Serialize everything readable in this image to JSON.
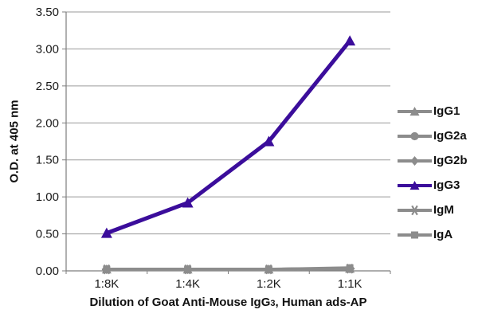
{
  "figure": {
    "xlabel_parts": {
      "prefix": "Dilution of Goat Anti-Mouse IgG",
      "sub": "3",
      "suffix": ", Human ads-AP"
    }
  },
  "chart_data": {
    "type": "line",
    "title": "",
    "xlabel": "Dilution of Goat Anti-Mouse IgG3, Human ads-AP",
    "ylabel": "O.D. at 405 nm",
    "categories": [
      "1:8K",
      "1:4K",
      "1:2K",
      "1:1K"
    ],
    "ylim": [
      0,
      3.5
    ],
    "yticks": [
      "0.00",
      "0.50",
      "1.00",
      "1.50",
      "2.00",
      "2.50",
      "3.00",
      "3.50"
    ],
    "grid": true,
    "legend_position": "right",
    "colors": {
      "accent_purple": "#3B0D9B",
      "series_gray": "#8C8C8C",
      "gridline": "#9A9A9A",
      "axis": "#7D7D7D",
      "text": "#1a1a1a"
    },
    "series": [
      {
        "name": "IgG1",
        "color": "#8C8C8C",
        "marker": "triangle",
        "values": [
          0.02,
          0.02,
          0.02,
          0.03
        ]
      },
      {
        "name": "IgG2a",
        "color": "#8C8C8C",
        "marker": "circle",
        "values": [
          0.02,
          0.02,
          0.02,
          0.03
        ]
      },
      {
        "name": "IgG2b",
        "color": "#8C8C8C",
        "marker": "diamond",
        "values": [
          0.02,
          0.02,
          0.02,
          0.03
        ]
      },
      {
        "name": "IgG3",
        "color": "#3B0D9B",
        "marker": "triangle",
        "values": [
          0.51,
          0.92,
          1.75,
          3.11
        ]
      },
      {
        "name": "IgM",
        "color": "#8C8C8C",
        "marker": "asterisk",
        "values": [
          0.02,
          0.02,
          0.02,
          0.03
        ]
      },
      {
        "name": "IgA",
        "color": "#8C8C8C",
        "marker": "square",
        "values": [
          0.02,
          0.02,
          0.02,
          0.04
        ]
      }
    ]
  }
}
